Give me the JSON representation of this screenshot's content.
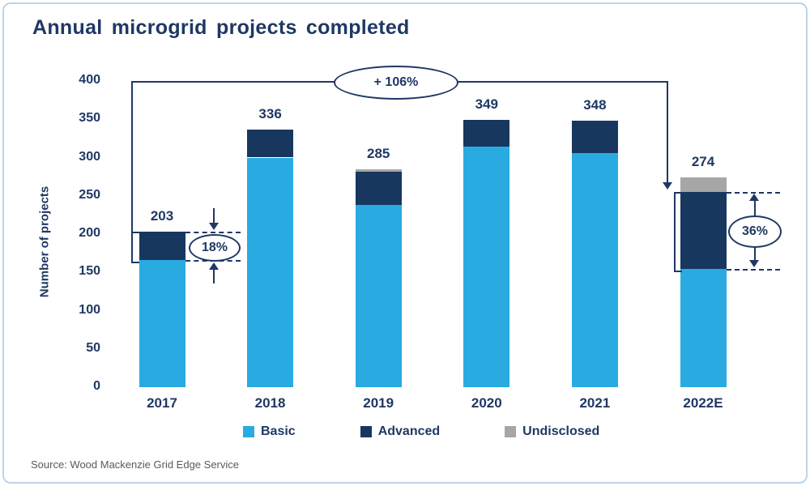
{
  "title": "Annual microgrid projects completed",
  "source": "Source: Wood Mackenzie Grid Edge Service",
  "colors": {
    "basic": "#29ABE2",
    "advanced": "#17375E",
    "undisclosed": "#A6A6A6",
    "annotation": "#1F3864",
    "title_text": "#1F3864",
    "frame_border": "#BCD4EA",
    "source_text": "#595959"
  },
  "chart_data": {
    "type": "bar",
    "stacked": true,
    "title": "Annual microgrid projects completed",
    "ylabel": "Number of projects",
    "ylim": [
      0,
      400
    ],
    "ytick_step": 50,
    "grid": false,
    "legend_position": "bottom",
    "categories": [
      "2017",
      "2018",
      "2019",
      "2020",
      "2021",
      "2022E"
    ],
    "series": [
      {
        "name": "Basic",
        "color": "#29ABE2",
        "values": [
          166,
          300,
          238,
          314,
          306,
          155
        ]
      },
      {
        "name": "Advanced",
        "color": "#17375E",
        "values": [
          37,
          36,
          43,
          35,
          42,
          100
        ]
      },
      {
        "name": "Undisclosed",
        "color": "#A6A6A6",
        "values": [
          0,
          0,
          4,
          0,
          0,
          19
        ]
      }
    ],
    "totals": [
      203,
      336,
      285,
      349,
      348,
      274
    ],
    "annotations": {
      "growth": {
        "label": "+ 106%",
        "from_category": "2017",
        "to_category": "2022E",
        "to_value": 255
      },
      "advanced_share_2017": {
        "label": "18%",
        "top_value": 203,
        "bottom_value": 166
      },
      "advanced_share_2022": {
        "label": "36%",
        "top_value": 255,
        "bottom_value": 155
      }
    }
  }
}
